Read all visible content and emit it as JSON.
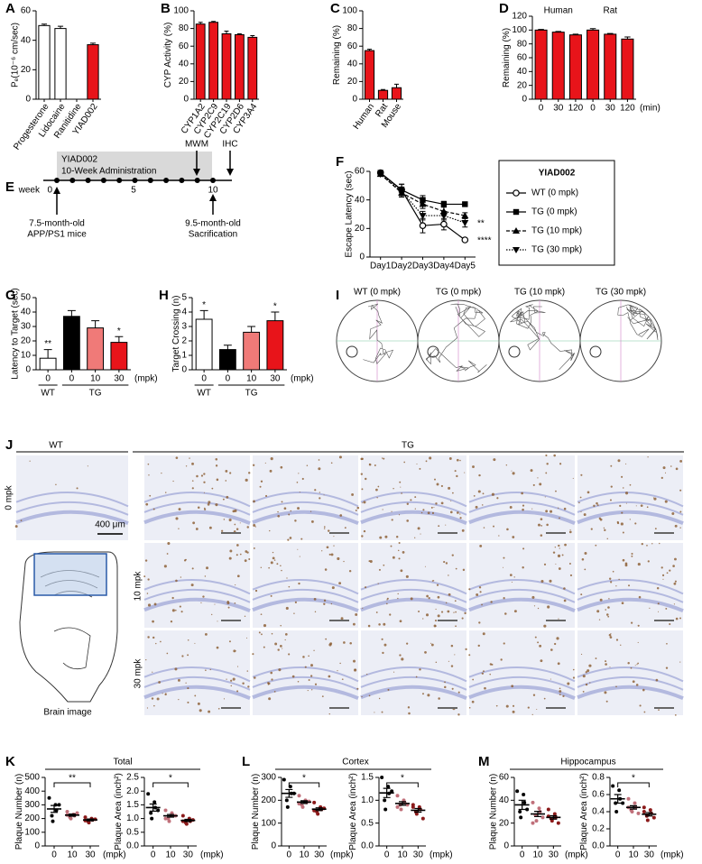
{
  "chart_data": [
    {
      "panel": "A",
      "type": "bar",
      "ylabel": "Pₑ(10⁻⁶ cm/sec)",
      "categories": [
        "Progesterone",
        "Lidocaine",
        "Ranitidine",
        "YIAD002"
      ],
      "values": [
        50,
        48,
        0,
        37
      ],
      "errors": [
        1,
        1.5,
        0,
        1
      ],
      "colors": [
        "#ffffff",
        "#ffffff",
        "#ffffff",
        "#e8141a"
      ],
      "ylim": [
        0,
        60
      ],
      "yticks": [
        0,
        20,
        40,
        60
      ],
      "rotate_labels": true
    },
    {
      "panel": "B",
      "type": "bar",
      "ylabel": "CYP Activity (%)",
      "categories": [
        "CYP1A2",
        "CYP2C9",
        "CYP2C19",
        "CYP2D6",
        "CYP3A4"
      ],
      "values": [
        85,
        87,
        74,
        73,
        70
      ],
      "errors": [
        2,
        1,
        3,
        1,
        2
      ],
      "colors": [
        "#e8141a",
        "#e8141a",
        "#e8141a",
        "#e8141a",
        "#e8141a"
      ],
      "ylim": [
        0,
        100
      ],
      "yticks": [
        0,
        20,
        40,
        60,
        80,
        100
      ],
      "rotate_labels": true
    },
    {
      "panel": "C",
      "type": "bar",
      "ylabel": "Remaining (%)",
      "categories": [
        "Human",
        "Rat",
        "Mouse"
      ],
      "values": [
        55,
        10,
        13
      ],
      "errors": [
        1.5,
        1,
        4
      ],
      "colors": [
        "#e8141a",
        "#e8141a",
        "#e8141a"
      ],
      "ylim": [
        0,
        100
      ],
      "yticks": [
        0,
        20,
        40,
        60,
        80,
        100
      ],
      "rotate_labels": true
    },
    {
      "panel": "D",
      "type": "bar",
      "ylabel": "Remaining (%)",
      "categories": [
        "0",
        "30",
        "120",
        "0",
        "30",
        "120"
      ],
      "values": [
        100,
        97,
        93,
        100,
        94,
        87
      ],
      "errors": [
        1,
        1,
        1,
        2,
        1,
        3
      ],
      "colors": [
        "#e8141a",
        "#e8141a",
        "#e8141a",
        "#e8141a",
        "#e8141a",
        "#e8141a"
      ],
      "groups": [
        "Human",
        "Rat"
      ],
      "x_unit": "(min)",
      "ylim": [
        0,
        120
      ],
      "yticks": [
        0,
        20,
        40,
        60,
        80,
        100,
        120
      ]
    },
    {
      "panel": "F",
      "type": "line",
      "ylabel": "Escape Latency (sec)",
      "categories": [
        "Day1",
        "Day2",
        "Day3",
        "Day4",
        "Day5"
      ],
      "legend_title": "YIAD002",
      "ylim": [
        0,
        60
      ],
      "yticks": [
        0,
        20,
        40,
        60
      ],
      "series": [
        {
          "name": "WT (0 mpk)",
          "color": "#000000",
          "marker": "circle-open",
          "dash": "solid",
          "values": [
            59,
            47,
            22,
            23,
            12
          ],
          "errors": [
            1,
            4,
            5,
            4,
            1
          ],
          "significance": "****"
        },
        {
          "name": "TG (0 mpk)",
          "color": "#000000",
          "marker": "square",
          "dash": "solid",
          "values": [
            59,
            47,
            40,
            37,
            37
          ],
          "errors": [
            1,
            4,
            3,
            2,
            1
          ]
        },
        {
          "name": "TG (10 mpk)",
          "color": "#000000",
          "marker": "triangle-up",
          "dash": "dashed",
          "values": [
            58,
            45,
            37,
            32,
            29
          ],
          "errors": [
            1,
            3,
            3,
            3,
            2
          ]
        },
        {
          "name": "TG (30 mpk)",
          "color": "#000000",
          "marker": "triangle-down",
          "dash": "dotted",
          "values": [
            58,
            46,
            29,
            29,
            24
          ],
          "errors": [
            1,
            3,
            3,
            3,
            3
          ],
          "significance": "**"
        }
      ]
    },
    {
      "panel": "G",
      "type": "bar",
      "ylabel": "Latency to Target (sec)",
      "categories": [
        "0",
        "0",
        "10",
        "30"
      ],
      "values": [
        8,
        37,
        29,
        19
      ],
      "errors": [
        6,
        4,
        5,
        4
      ],
      "colors": [
        "#ffffff",
        "#000000",
        "#f07a78",
        "#e8141a"
      ],
      "significance": [
        "**",
        null,
        null,
        "*"
      ],
      "groups": [
        "WT",
        "TG"
      ],
      "x_unit": "(mpk)",
      "ylim": [
        0,
        50
      ],
      "yticks": [
        0,
        10,
        20,
        30,
        40,
        50
      ]
    },
    {
      "panel": "H",
      "type": "bar",
      "ylabel": "Target Crossing (n)",
      "categories": [
        "0",
        "0",
        "10",
        "30"
      ],
      "values": [
        3.5,
        1.4,
        2.6,
        3.4
      ],
      "errors": [
        0.6,
        0.3,
        0.4,
        0.6
      ],
      "colors": [
        "#ffffff",
        "#000000",
        "#f07a78",
        "#e8141a"
      ],
      "significance": [
        "*",
        null,
        null,
        "*"
      ],
      "groups": [
        "WT",
        "TG"
      ],
      "x_unit": "(mpk)",
      "ylim": [
        0,
        5
      ],
      "yticks": [
        0,
        1,
        2,
        3,
        4,
        5
      ]
    },
    {
      "panel": "K",
      "title": "Total",
      "type": "dot",
      "ylabel": "Plaque Number (n)",
      "categories": [
        "0",
        "10",
        "30"
      ],
      "x_unit": "(mpk)",
      "points": [
        [
          350,
          300,
          260,
          220,
          180,
          300
        ],
        [
          250,
          230,
          220,
          210,
          200,
          240,
          225
        ],
        [
          210,
          200,
          190,
          180,
          170,
          195,
          185
        ]
      ],
      "means": [
        270,
        225,
        190
      ],
      "sems": [
        25,
        8,
        7
      ],
      "colors": [
        "#000000",
        "#c0707a",
        "#8b1a1a"
      ],
      "significance": "**",
      "ylim": [
        0,
        500
      ],
      "yticks": [
        0,
        100,
        200,
        300,
        400,
        500
      ]
    },
    {
      "type": "dot",
      "ylabel": "Plaque Area (inch²)",
      "categories": [
        "0",
        "10",
        "30"
      ],
      "x_unit": "(mpk)",
      "points": [
        [
          1.9,
          1.6,
          1.4,
          1.2,
          1.0,
          1.3
        ],
        [
          1.3,
          1.2,
          1.1,
          1.0,
          0.9,
          1.1,
          1.0
        ],
        [
          1.1,
          1.0,
          0.9,
          0.85,
          0.8,
          0.95,
          0.9
        ]
      ],
      "means": [
        1.4,
        1.1,
        0.93
      ],
      "sems": [
        0.13,
        0.05,
        0.04
      ],
      "colors": [
        "#000000",
        "#c0707a",
        "#8b1a1a"
      ],
      "significance": "*",
      "ylim": [
        0,
        2.5
      ],
      "yticks": [
        {
          "value": 0,
          "label": "0.0"
        },
        0.5,
        {
          "value": 1,
          "label": "1.0"
        },
        1.5,
        {
          "value": 2,
          "label": "2.0"
        },
        2.5
      ]
    },
    {
      "panel": "L",
      "title": "Cortex",
      "type": "dot",
      "ylabel": "Plaque Number (n)",
      "categories": [
        "0",
        "10",
        "30"
      ],
      "x_unit": "(mpk)",
      "points": [
        [
          290,
          260,
          230,
          200,
          170,
          230
        ],
        [
          220,
          200,
          190,
          180,
          170,
          195,
          185
        ],
        [
          190,
          170,
          160,
          150,
          140,
          165,
          155
        ]
      ],
      "means": [
        230,
        192,
        161
      ],
      "sems": [
        17,
        6,
        6
      ],
      "colors": [
        "#000000",
        "#c0707a",
        "#8b1a1a"
      ],
      "significance": "*",
      "ylim": [
        0,
        300
      ],
      "yticks": [
        0,
        100,
        200,
        300
      ]
    },
    {
      "type": "dot",
      "ylabel": "Plaque Area (inch²)",
      "categories": [
        "0",
        "10",
        "30"
      ],
      "x_unit": "(mpk)",
      "points": [
        [
          1.5,
          1.3,
          1.15,
          1.0,
          0.8,
          1.2
        ],
        [
          1.1,
          1.0,
          0.95,
          0.9,
          0.8,
          0.9,
          0.85
        ],
        [
          0.9,
          0.85,
          0.8,
          0.75,
          0.7,
          0.6,
          0.85
        ]
      ],
      "means": [
        1.16,
        0.93,
        0.78
      ],
      "sems": [
        0.1,
        0.04,
        0.04
      ],
      "colors": [
        "#000000",
        "#c0707a",
        "#8b1a1a"
      ],
      "significance": "*",
      "ylim": [
        0,
        1.5
      ],
      "yticks": [
        {
          "value": 0,
          "label": "0.0"
        },
        0.5,
        {
          "value": 1,
          "label": "1.0"
        },
        1.5
      ]
    },
    {
      "panel": "M",
      "title": "Hippocampus",
      "type": "dot",
      "ylabel": "Plaque Number (n)",
      "categories": [
        "0",
        "10",
        "30"
      ],
      "x_unit": "(mpk)",
      "points": [
        [
          48,
          45,
          38,
          30,
          25,
          32
        ],
        [
          38,
          33,
          30,
          27,
          22,
          25,
          20
        ],
        [
          32,
          28,
          25,
          24,
          22,
          20,
          26
        ]
      ],
      "means": [
        36,
        28,
        25
      ],
      "sems": [
        4,
        2.3,
        1.5
      ],
      "colors": [
        "#000000",
        "#c0707a",
        "#8b1a1a"
      ],
      "ylim": [
        0,
        60
      ],
      "yticks": [
        0,
        20,
        40,
        60
      ]
    },
    {
      "type": "dot",
      "ylabel": "Plaque Area (inch²)",
      "categories": [
        "0",
        "10",
        "30"
      ],
      "x_unit": "(mpk)",
      "points": [
        [
          0.7,
          0.65,
          0.55,
          0.5,
          0.4,
          0.5
        ],
        [
          0.55,
          0.5,
          0.45,
          0.42,
          0.4,
          0.38,
          0.45
        ],
        [
          0.45,
          0.42,
          0.38,
          0.35,
          0.3,
          0.33,
          0.4
        ]
      ],
      "means": [
        0.55,
        0.45,
        0.37
      ],
      "sems": [
        0.05,
        0.02,
        0.02
      ],
      "colors": [
        "#000000",
        "#c0707a",
        "#8b1a1a"
      ],
      "significance": "*",
      "ylim": [
        0,
        0.8
      ],
      "yticks": [
        {
          "value": 0,
          "label": "0.0"
        },
        0.2,
        0.4,
        0.6,
        0.8
      ]
    }
  ],
  "timeline": {
    "panel": "E",
    "drug": "YIAD002",
    "duration": "10-Week Administration",
    "week_label": "week",
    "ticks": [
      "0",
      "5",
      "10"
    ],
    "events": [
      "MWM",
      "IHC"
    ],
    "start": [
      "7.5-month-old",
      "APP/PS1 mice"
    ],
    "end": [
      "9.5-month-old",
      "Sacrification"
    ]
  },
  "maze": {
    "panel": "I",
    "titles": [
      "WT (0 mpk)",
      "TG (0 mpk)",
      "TG (10 mpk)",
      "TG (30 mpk)"
    ]
  },
  "histology": {
    "panel": "J",
    "groups": [
      "WT",
      "TG"
    ],
    "rows": [
      "0 mpk",
      "10 mpk",
      "30 mpk"
    ],
    "scale_bar": "400 μm",
    "schematic": "Brain image"
  }
}
